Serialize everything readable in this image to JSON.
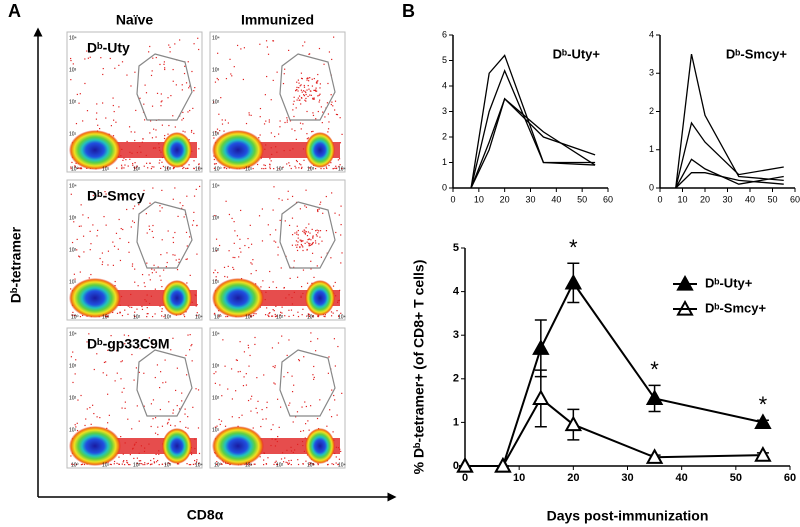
{
  "panel_a": {
    "label": "A",
    "columns": [
      "Naïve",
      "Immunized"
    ],
    "rows": [
      "Dᵇ-Uty",
      "Dᵇ-Smcy",
      "Dᵇ-gp33C9M"
    ],
    "y_label": "Dᵇ-tetramer",
    "x_label": "CD8α",
    "axis_ticks": [
      "10⁰",
      "10¹",
      "10²",
      "10³",
      "10⁴"
    ]
  },
  "panel_b": {
    "label": "B"
  },
  "chart_data": [
    {
      "type": "line",
      "title": "Dᵇ-Uty+",
      "x": [
        7,
        14,
        20,
        35,
        55
      ],
      "color": "#000000",
      "series": [
        {
          "values": [
            0,
            4.5,
            5.2,
            1.0,
            1.0
          ]
        },
        {
          "values": [
            0,
            3.0,
            4.6,
            1.0,
            0.9
          ]
        },
        {
          "values": [
            0,
            1.8,
            3.5,
            2.0,
            1.3
          ]
        },
        {
          "values": [
            0,
            1.5,
            3.5,
            2.2,
            0.9
          ]
        }
      ],
      "xlim": [
        0,
        60
      ],
      "xticks": [
        0,
        10,
        20,
        30,
        40,
        50,
        60
      ],
      "ylim": [
        0,
        6
      ],
      "yticks": [
        0,
        1,
        2,
        3,
        4,
        5,
        6
      ]
    },
    {
      "type": "line",
      "title": "Dᵇ-Smcy+",
      "x": [
        7,
        14,
        20,
        35,
        55
      ],
      "color": "#000000",
      "series": [
        {
          "values": [
            0,
            3.5,
            1.9,
            0.3,
            0.2
          ]
        },
        {
          "values": [
            0,
            1.7,
            1.2,
            0.35,
            0.55
          ]
        },
        {
          "values": [
            0,
            0.75,
            0.5,
            0.1,
            0.3
          ]
        },
        {
          "values": [
            0,
            0.4,
            0.4,
            0.2,
            0.1
          ]
        }
      ],
      "xlim": [
        0,
        60
      ],
      "xticks": [
        0,
        10,
        20,
        30,
        40,
        50,
        60
      ],
      "ylim": [
        0,
        4
      ],
      "yticks": [
        0,
        1,
        2,
        3,
        4
      ]
    },
    {
      "type": "line",
      "x_label": "Days post-immunization",
      "y_label": "% Dᵇ-tetramer+ (of CD8+ T cells)",
      "x": [
        0,
        7,
        14,
        20,
        35,
        55
      ],
      "series": [
        {
          "name": "Dᵇ-Uty+",
          "color": "#000000",
          "marker": "filled-triangle",
          "values": [
            0,
            0,
            2.7,
            4.2,
            1.55,
            1.0
          ],
          "errors": [
            0,
            0,
            0.65,
            0.45,
            0.3,
            0.05
          ]
        },
        {
          "name": "Dᵇ-Smcy+",
          "color": "#000000",
          "marker": "open-triangle",
          "values": [
            0,
            0,
            1.55,
            0.95,
            0.2,
            0.25
          ],
          "errors": [
            0,
            0,
            0.65,
            0.35,
            0.05,
            0.05
          ]
        }
      ],
      "annotations": [
        {
          "text": "*",
          "x": 20
        },
        {
          "text": "*",
          "x": 35
        },
        {
          "text": "*",
          "x": 55
        }
      ],
      "legend": "upper-right",
      "xlim": [
        0,
        60
      ],
      "xticks": [
        0,
        10,
        20,
        30,
        40,
        50,
        60
      ],
      "ylim": [
        0,
        5
      ],
      "yticks": [
        0,
        1,
        2,
        3,
        4,
        5
      ]
    }
  ]
}
